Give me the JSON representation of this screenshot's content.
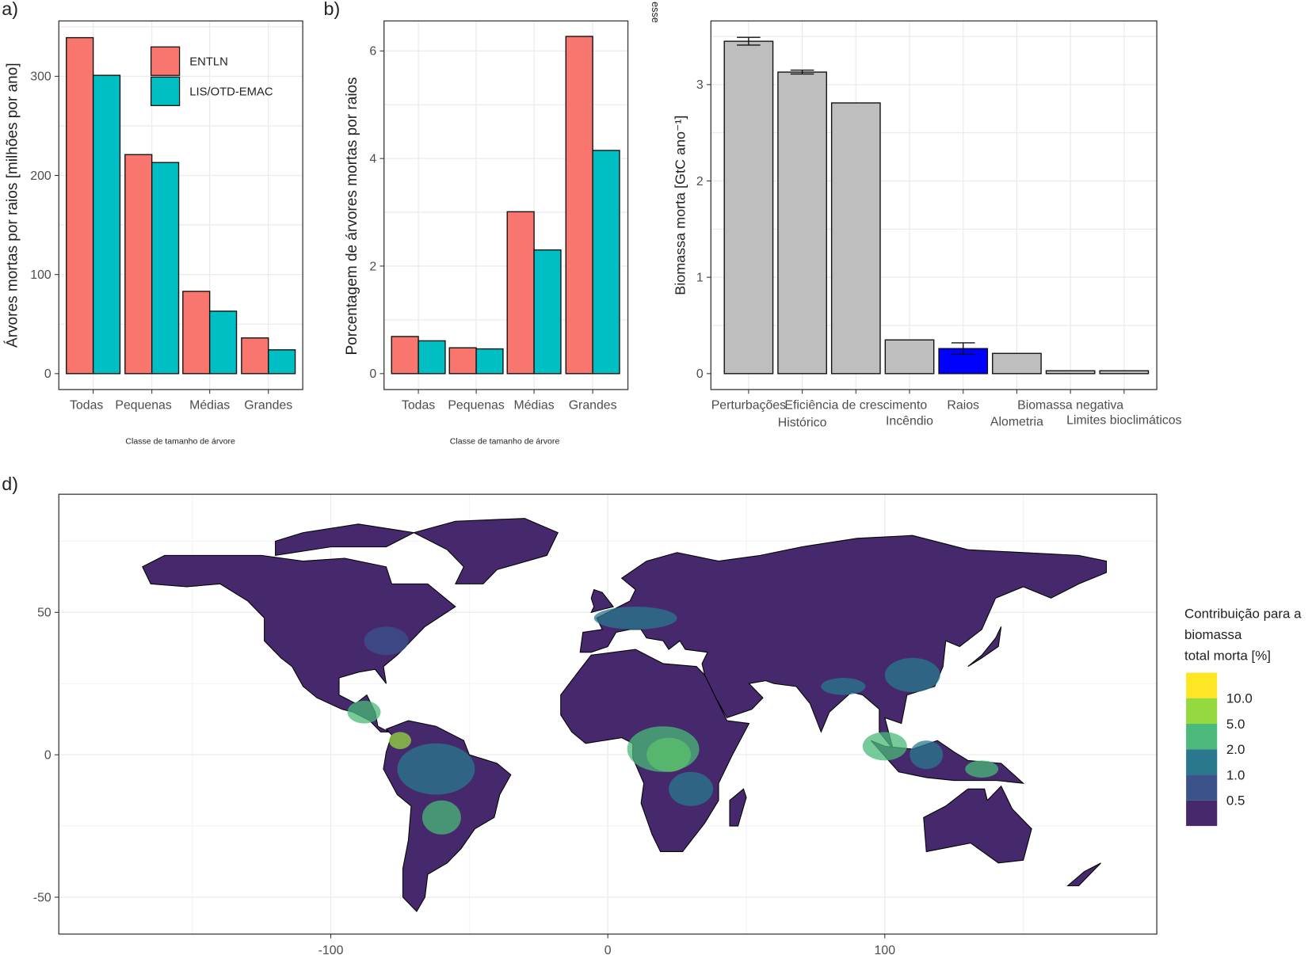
{
  "chart_data": [
    {
      "panel_label": "a)",
      "type": "bar",
      "xlabel": "Classe de tamanho de árvore",
      "ylabel": "Árvores mortas por raios [milhões por ano]",
      "categories": [
        "Todas",
        "Pequenas",
        "Médias",
        "Grandes"
      ],
      "series": [
        {
          "name": "ENTLN",
          "color": "#F8766D",
          "values": [
            339,
            221,
            83,
            36
          ]
        },
        {
          "name": "LIS/OTD-EMAC",
          "color": "#00BFC4",
          "values": [
            301,
            213,
            63,
            24
          ]
        }
      ],
      "ylim": [
        0,
        355
      ],
      "yticks": [
        "0",
        "100",
        "200",
        "300"
      ],
      "legend": "top-right",
      "grid": true
    },
    {
      "panel_label": "b)",
      "type": "bar",
      "xlabel": "Classe de tamanho de árvore",
      "ylabel": "Porcentagem de árvores mortas por raios",
      "categories": [
        "Todas",
        "Pequenas",
        "Médias",
        "Grandes"
      ],
      "series": [
        {
          "name": "ENTLN",
          "color": "#F8766D",
          "values": [
            0.69,
            0.48,
            3.01,
            6.27
          ]
        },
        {
          "name": "LIS/OTD-EMAC",
          "color": "#00BFC4",
          "values": [
            0.61,
            0.46,
            2.3,
            4.15
          ]
        }
      ],
      "ylim": [
        0,
        6.6
      ],
      "yticks": [
        "0",
        "2",
        "4",
        "6"
      ],
      "grid": true
    },
    {
      "panel_label": "esse",
      "type": "bar",
      "ylabel": "Biomassa morta [GtC ano⁻¹]",
      "categories": [
        "Perturbações",
        "Histórico",
        "Eficiência de crescimento",
        "Incêndio",
        "Raios",
        "Alometria",
        "Biomassa negativa",
        "Limites bioclimáticos"
      ],
      "values": [
        3.45,
        3.13,
        2.81,
        0.35,
        0.26,
        0.21,
        0.03,
        0.03
      ],
      "error_low": [
        3.41,
        3.11,
        null,
        null,
        0.2,
        null,
        null,
        null
      ],
      "error_high": [
        3.49,
        3.15,
        null,
        null,
        0.32,
        null,
        null,
        null
      ],
      "colors": [
        "#BEBEBE",
        "#BEBEBE",
        "#BEBEBE",
        "#BEBEBE",
        "#0000FF",
        "#BEBEBE",
        "#BEBEBE",
        "#BEBEBE"
      ],
      "ylim": [
        0,
        3.65
      ],
      "yticks": [
        "0",
        "1",
        "2",
        "3"
      ],
      "grid": true
    },
    {
      "panel_label": "d)",
      "type": "heatmap",
      "xlim": [
        -198,
        198
      ],
      "ylim": [
        -63,
        91
      ],
      "xticks": [
        "-100",
        "0",
        "100"
      ],
      "yticks": [
        "-50",
        "0",
        "50"
      ],
      "legend_title": [
        "Contribuição para a",
        "biomassa",
        "total morta [%]"
      ],
      "legend_breaks": [
        "10.0",
        "5.0",
        "2.0",
        "1.0",
        "0.5"
      ],
      "legend_colors": [
        "#FDE725",
        "#95D840",
        "#4AB97A",
        "#2A788E",
        "#3B528B",
        "#46296C"
      ],
      "legend": "right"
    }
  ]
}
